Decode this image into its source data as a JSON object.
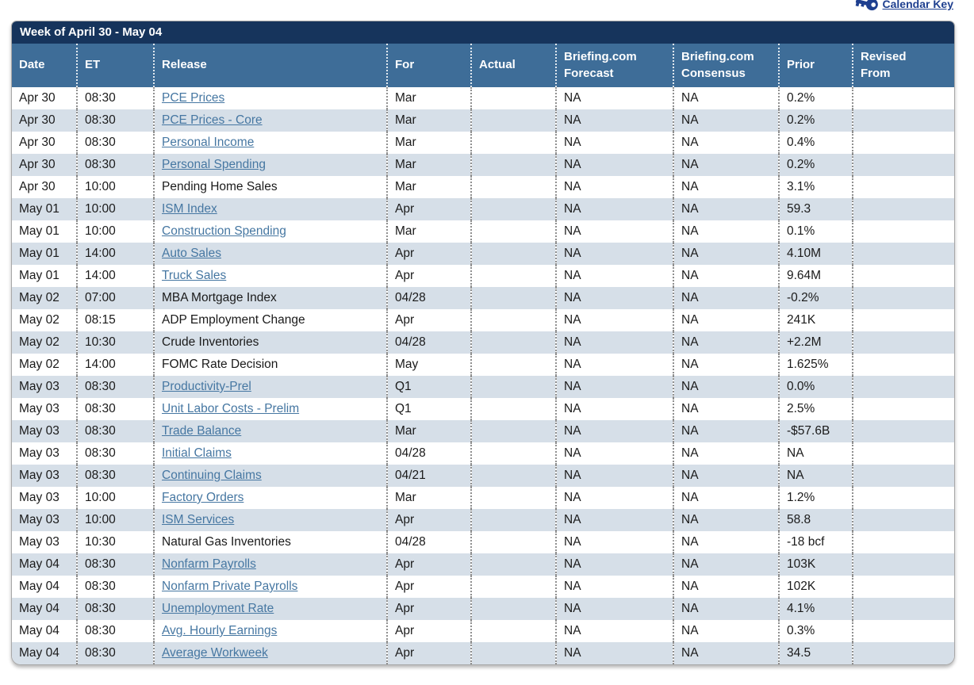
{
  "calendar_key": {
    "label": "Calendar Key"
  },
  "colors": {
    "title_bar": "#16345c",
    "header_row": "#3e6d98",
    "alt_row": "#d6dfe8",
    "link": "#4677a2",
    "calendar_key_link": "#1e3f8f"
  },
  "header": {
    "title": "Week of April 30 - May 04"
  },
  "table": {
    "columns": [
      "Date",
      "ET",
      "Release",
      "For",
      "Actual",
      "Briefing.com\nForecast",
      "Briefing.com\nConsensus",
      "Prior",
      "Revised\nFrom"
    ],
    "rows": [
      {
        "date": "Apr 30",
        "et": "08:30",
        "release": "PCE Prices",
        "link": true,
        "for": "Mar",
        "actual": "",
        "forecast": "NA",
        "consensus": "NA",
        "prior": "0.2%",
        "revised": ""
      },
      {
        "date": "Apr 30",
        "et": "08:30",
        "release": "PCE Prices - Core",
        "link": true,
        "for": "Mar",
        "actual": "",
        "forecast": "NA",
        "consensus": "NA",
        "prior": "0.2%",
        "revised": ""
      },
      {
        "date": "Apr 30",
        "et": "08:30",
        "release": "Personal Income",
        "link": true,
        "for": "Mar",
        "actual": "",
        "forecast": "NA",
        "consensus": "NA",
        "prior": "0.4%",
        "revised": ""
      },
      {
        "date": "Apr 30",
        "et": "08:30",
        "release": "Personal Spending",
        "link": true,
        "for": "Mar",
        "actual": "",
        "forecast": "NA",
        "consensus": "NA",
        "prior": "0.2%",
        "revised": ""
      },
      {
        "date": "Apr 30",
        "et": "10:00",
        "release": "Pending Home Sales",
        "link": false,
        "for": "Mar",
        "actual": "",
        "forecast": "NA",
        "consensus": "NA",
        "prior": "3.1%",
        "revised": ""
      },
      {
        "date": "May 01",
        "et": "10:00",
        "release": "ISM Index",
        "link": true,
        "for": "Apr",
        "actual": "",
        "forecast": "NA",
        "consensus": "NA",
        "prior": "59.3",
        "revised": ""
      },
      {
        "date": "May 01",
        "et": "10:00",
        "release": "Construction Spending",
        "link": true,
        "for": "Mar",
        "actual": "",
        "forecast": "NA",
        "consensus": "NA",
        "prior": "0.1%",
        "revised": ""
      },
      {
        "date": "May 01",
        "et": "14:00",
        "release": "Auto Sales",
        "link": true,
        "for": "Apr",
        "actual": "",
        "forecast": "NA",
        "consensus": "NA",
        "prior": "4.10M",
        "revised": ""
      },
      {
        "date": "May 01",
        "et": "14:00",
        "release": "Truck Sales",
        "link": true,
        "for": "Apr",
        "actual": "",
        "forecast": "NA",
        "consensus": "NA",
        "prior": "9.64M",
        "revised": ""
      },
      {
        "date": "May 02",
        "et": "07:00",
        "release": "MBA Mortgage Index",
        "link": false,
        "for": "04/28",
        "actual": "",
        "forecast": "NA",
        "consensus": "NA",
        "prior": "-0.2%",
        "revised": ""
      },
      {
        "date": "May 02",
        "et": "08:15",
        "release": "ADP Employment Change",
        "link": false,
        "for": "Apr",
        "actual": "",
        "forecast": "NA",
        "consensus": "NA",
        "prior": "241K",
        "revised": ""
      },
      {
        "date": "May 02",
        "et": "10:30",
        "release": "Crude Inventories",
        "link": false,
        "for": "04/28",
        "actual": "",
        "forecast": "NA",
        "consensus": "NA",
        "prior": "+2.2M",
        "revised": ""
      },
      {
        "date": "May 02",
        "et": "14:00",
        "release": "FOMC Rate Decision",
        "link": false,
        "for": "May",
        "actual": "",
        "forecast": "NA",
        "consensus": "NA",
        "prior": "1.625%",
        "revised": ""
      },
      {
        "date": "May 03",
        "et": "08:30",
        "release": "Productivity-Prel",
        "link": true,
        "for": "Q1",
        "actual": "",
        "forecast": "NA",
        "consensus": "NA",
        "prior": "0.0%",
        "revised": ""
      },
      {
        "date": "May 03",
        "et": "08:30",
        "release": "Unit Labor Costs - Prelim",
        "link": true,
        "for": "Q1",
        "actual": "",
        "forecast": "NA",
        "consensus": "NA",
        "prior": "2.5%",
        "revised": ""
      },
      {
        "date": "May 03",
        "et": "08:30",
        "release": "Trade Balance",
        "link": true,
        "for": "Mar",
        "actual": "",
        "forecast": "NA",
        "consensus": "NA",
        "prior": "-$57.6B",
        "revised": ""
      },
      {
        "date": "May 03",
        "et": "08:30",
        "release": "Initial Claims",
        "link": true,
        "for": "04/28",
        "actual": "",
        "forecast": "NA",
        "consensus": "NA",
        "prior": "NA",
        "revised": ""
      },
      {
        "date": "May 03",
        "et": "08:30",
        "release": "Continuing Claims",
        "link": true,
        "for": "04/21",
        "actual": "",
        "forecast": "NA",
        "consensus": "NA",
        "prior": "NA",
        "revised": ""
      },
      {
        "date": "May 03",
        "et": "10:00",
        "release": "Factory Orders",
        "link": true,
        "for": "Mar",
        "actual": "",
        "forecast": "NA",
        "consensus": "NA",
        "prior": "1.2%",
        "revised": ""
      },
      {
        "date": "May 03",
        "et": "10:00",
        "release": "ISM Services",
        "link": true,
        "for": "Apr",
        "actual": "",
        "forecast": "NA",
        "consensus": "NA",
        "prior": "58.8",
        "revised": ""
      },
      {
        "date": "May 03",
        "et": "10:30",
        "release": "Natural Gas Inventories",
        "link": false,
        "for": "04/28",
        "actual": "",
        "forecast": "NA",
        "consensus": "NA",
        "prior": "-18 bcf",
        "revised": ""
      },
      {
        "date": "May 04",
        "et": "08:30",
        "release": "Nonfarm Payrolls",
        "link": true,
        "for": "Apr",
        "actual": "",
        "forecast": "NA",
        "consensus": "NA",
        "prior": "103K",
        "revised": ""
      },
      {
        "date": "May 04",
        "et": "08:30",
        "release": "Nonfarm Private Payrolls",
        "link": true,
        "for": "Apr",
        "actual": "",
        "forecast": "NA",
        "consensus": "NA",
        "prior": "102K",
        "revised": ""
      },
      {
        "date": "May 04",
        "et": "08:30",
        "release": "Unemployment Rate",
        "link": true,
        "for": "Apr",
        "actual": "",
        "forecast": "NA",
        "consensus": "NA",
        "prior": "4.1%",
        "revised": ""
      },
      {
        "date": "May 04",
        "et": "08:30",
        "release": "Avg. Hourly Earnings",
        "link": true,
        "for": "Apr",
        "actual": "",
        "forecast": "NA",
        "consensus": "NA",
        "prior": "0.3%",
        "revised": ""
      },
      {
        "date": "May 04",
        "et": "08:30",
        "release": "Average Workweek",
        "link": true,
        "for": "Apr",
        "actual": "",
        "forecast": "NA",
        "consensus": "NA",
        "prior": "34.5",
        "revised": ""
      }
    ]
  }
}
